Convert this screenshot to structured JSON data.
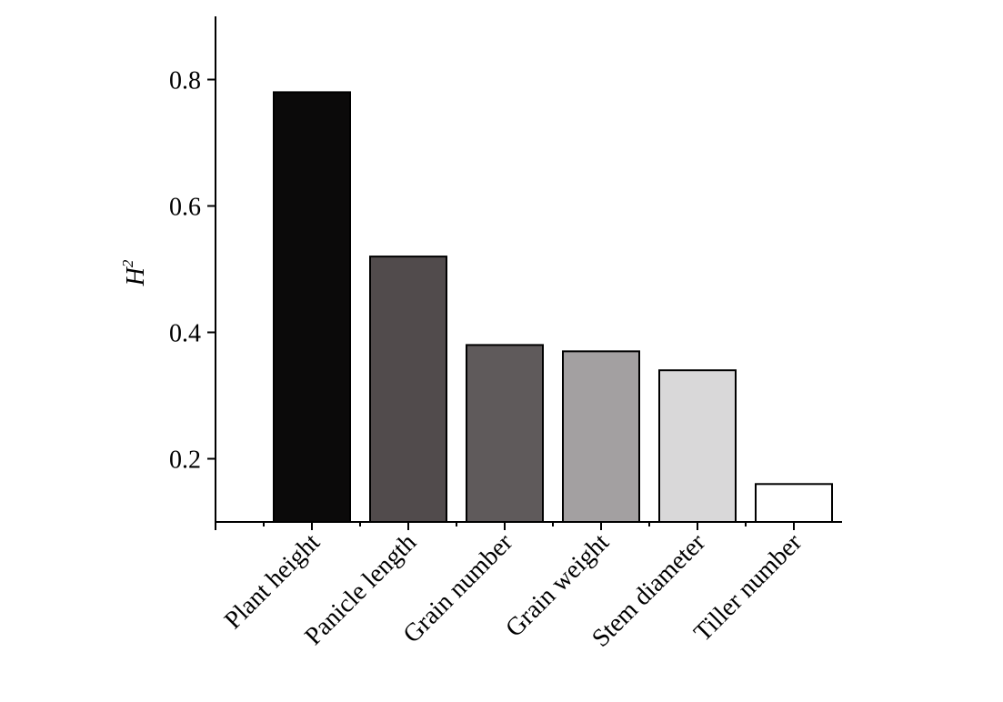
{
  "chart_data": {
    "type": "bar",
    "title": "",
    "xlabel": "",
    "ylabel": "H",
    "ylabel_superscript": "2",
    "categories": [
      "Plant height",
      "Panicle length",
      "Grain number",
      "Grain weight",
      "Stem diameter",
      "Tiller number"
    ],
    "values": [
      0.78,
      0.52,
      0.38,
      0.37,
      0.34,
      0.16
    ],
    "colors": [
      "#0b0a0a",
      "#514b4c",
      "#5f5a5b",
      "#a3a0a1",
      "#d9d8d9",
      "#ffffff"
    ],
    "ylim": [
      0.1,
      0.9
    ],
    "yticks": [
      0.2,
      0.4,
      0.6,
      0.8
    ],
    "ytick_labels": [
      "0.2",
      "0.4",
      "0.6",
      "0.8"
    ],
    "grid": false,
    "legend": "none"
  }
}
